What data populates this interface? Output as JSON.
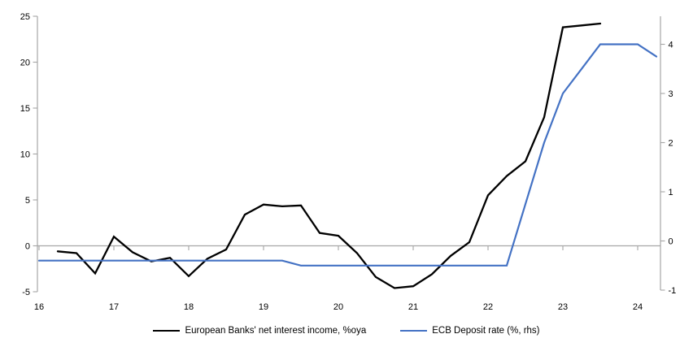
{
  "chart_data": {
    "type": "line",
    "title": "",
    "legend_position": "bottom",
    "grid": "zero-line-only",
    "x_axis": {
      "ticks": [
        16,
        17,
        18,
        19,
        20,
        21,
        22,
        23,
        24
      ],
      "min": 15.95,
      "max": 24.4
    },
    "left_axis": {
      "ticks": [
        25,
        20,
        15,
        10,
        5,
        0,
        -5
      ],
      "min": -5,
      "max": 25
    },
    "right_axis": {
      "ticks": [
        4,
        3,
        2,
        1,
        0,
        -1
      ],
      "min": -1.05,
      "max": 4.55
    },
    "colors": {
      "axis": "#a6a6a6",
      "zero_line": "#a6a6a6",
      "text": "#000000",
      "background": "#ffffff"
    },
    "series": [
      {
        "name": "European Banks' net interest income, %oya",
        "axis": "left",
        "color": "#000000",
        "x": [
          16.25,
          16.5,
          16.75,
          17,
          17.25,
          17.5,
          17.75,
          18,
          18.25,
          18.5,
          18.75,
          19,
          19.25,
          19.5,
          19.75,
          20,
          20.25,
          20.5,
          20.75,
          21,
          21.25,
          21.5,
          21.75,
          22,
          22.25,
          22.5,
          22.75,
          23,
          23.25,
          23.5
        ],
        "values": [
          -0.6,
          -0.8,
          -3.0,
          1.0,
          -0.7,
          -1.7,
          -1.3,
          -3.3,
          -1.4,
          -0.4,
          3.4,
          4.5,
          4.3,
          4.4,
          1.4,
          1.1,
          -0.8,
          -3.4,
          -4.6,
          -4.4,
          -3.1,
          -1.1,
          0.4,
          5.5,
          7.6,
          9.2,
          14.0,
          23.8,
          24.0,
          24.2
        ]
      },
      {
        "name": "ECB Deposit rate (%, rhs)",
        "axis": "right",
        "color": "#4472c4",
        "x": [
          16,
          16.25,
          16.5,
          16.75,
          17,
          17.25,
          17.5,
          17.75,
          18,
          18.25,
          18.5,
          18.75,
          19,
          19.25,
          19.5,
          19.75,
          20,
          20.25,
          20.5,
          20.75,
          21,
          21.25,
          21.5,
          21.75,
          22,
          22.25,
          22.5,
          22.75,
          23,
          23.25,
          23.5,
          23.75,
          24,
          24.25
        ],
        "values": [
          -0.4,
          -0.4,
          -0.4,
          -0.4,
          -0.4,
          -0.4,
          -0.4,
          -0.4,
          -0.4,
          -0.4,
          -0.4,
          -0.4,
          -0.4,
          -0.4,
          -0.5,
          -0.5,
          -0.5,
          -0.5,
          -0.5,
          -0.5,
          -0.5,
          -0.5,
          -0.5,
          -0.5,
          -0.5,
          -0.5,
          0.75,
          2.0,
          3.0,
          3.5,
          4.0,
          4.0,
          4.0,
          3.75
        ]
      }
    ]
  }
}
